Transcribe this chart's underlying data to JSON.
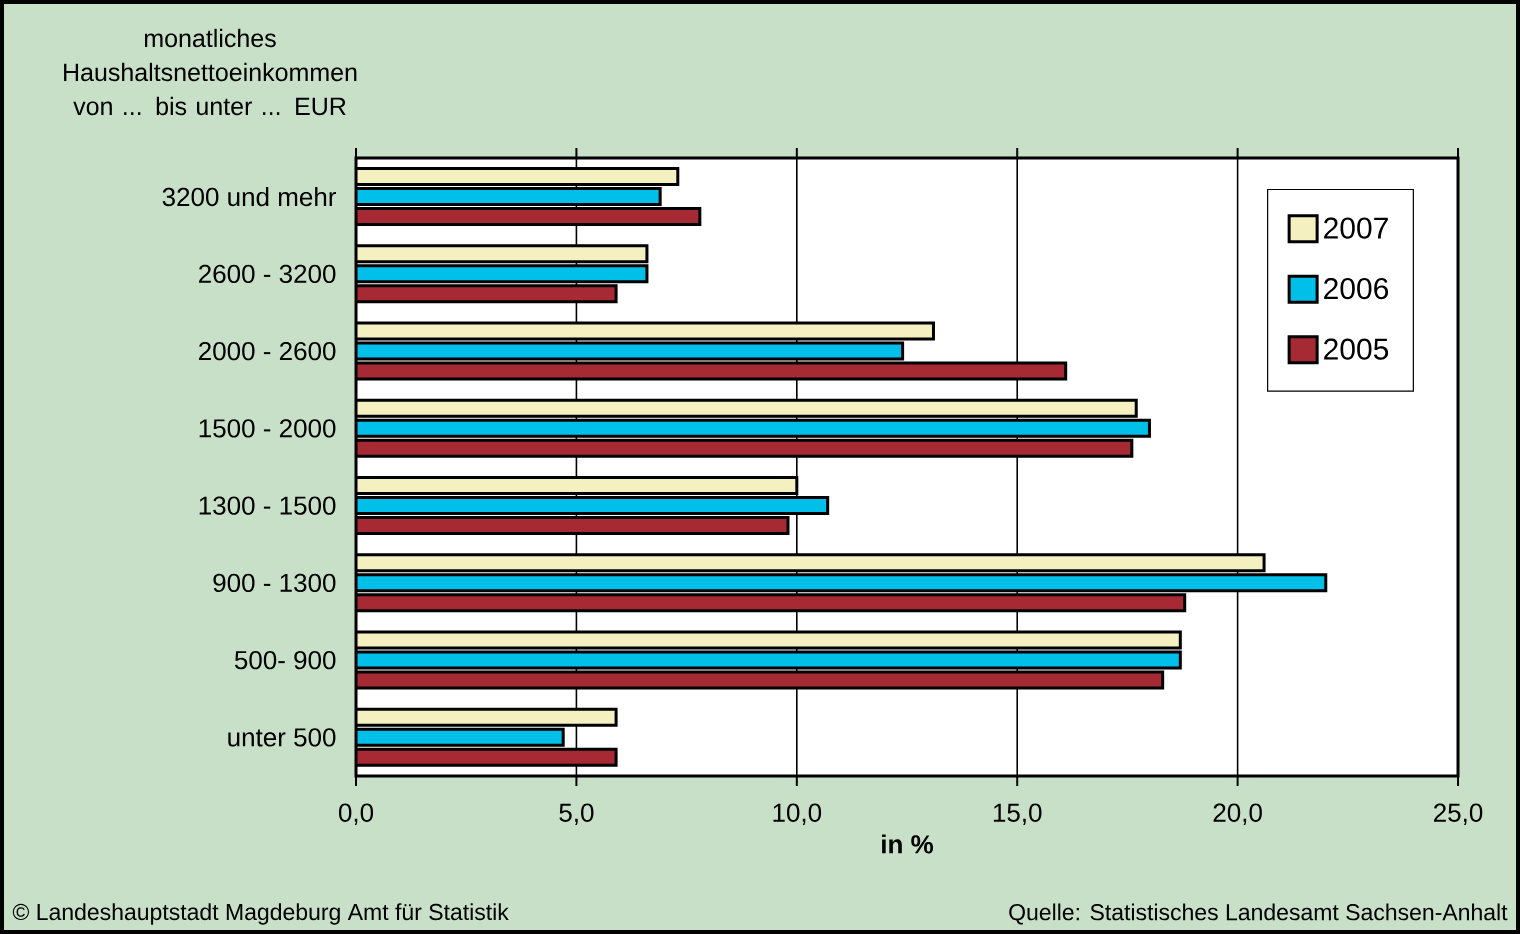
{
  "chart_data": {
    "type": "bar",
    "orientation": "horizontal",
    "ylabel": "monatliches Haushaltsnettoeinkommen von ... bis unter ... EUR",
    "xlabel": "in %",
    "categories": [
      "3200 und mehr",
      "2600 - 3200",
      "2000 - 2600",
      "1500 - 2000",
      "1300 - 1500",
      "900 - 1300",
      "500- 900",
      "unter 500"
    ],
    "series": [
      {
        "name": "2007",
        "color": "#f5f0c0",
        "values": [
          7.3,
          6.6,
          13.1,
          17.7,
          10.0,
          20.6,
          18.7,
          5.9
        ]
      },
      {
        "name": "2006",
        "color": "#00bfe8",
        "values": [
          6.9,
          6.6,
          12.4,
          18.0,
          10.7,
          22.0,
          18.7,
          4.7
        ]
      },
      {
        "name": "2005",
        "color": "#a52a34",
        "values": [
          7.8,
          5.9,
          16.1,
          17.6,
          9.8,
          18.8,
          18.3,
          5.9
        ]
      }
    ],
    "xlim": [
      0,
      25
    ],
    "xticks": [
      {
        "value": 0,
        "label": "0,0"
      },
      {
        "value": 5,
        "label": "5,0"
      },
      {
        "value": 10,
        "label": "10,0"
      },
      {
        "value": 15,
        "label": "15,0"
      },
      {
        "value": 20,
        "label": "20,0"
      },
      {
        "value": 25,
        "label": "25,0"
      }
    ],
    "grid": "x",
    "legend": "top right",
    "annotations": [
      "© Landeshauptstadt Magdeburg  Amt für Statistik",
      "Quelle: Statistisches Landesamt Sachsen-Anhalt"
    ]
  }
}
